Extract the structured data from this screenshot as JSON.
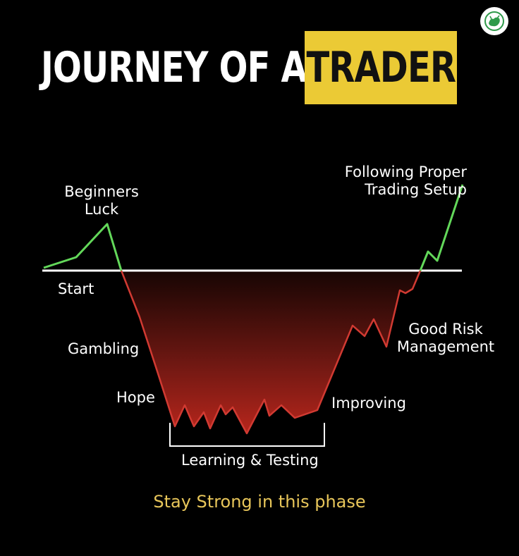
{
  "title": {
    "main": "JOURNEY OF A",
    "highlight": "TRADER"
  },
  "labels": {
    "beginners_luck": "Beginners\nLuck",
    "start": "Start",
    "gambling": "Gambling",
    "hope": "Hope",
    "learning_testing": "Learning & Testing",
    "improving": "Improving",
    "good_risk": "Good Risk\nManagement",
    "following": "Following Proper\nTrading Setup"
  },
  "footer": "Stay Strong in this phase",
  "colors": {
    "background": "#000000",
    "highlight": "#ebca35",
    "rise_line": "#63d85a",
    "fall_line": "#d13a32",
    "baseline": "#ffffff",
    "footer_text": "#e8c65a"
  },
  "icons": {
    "logo": "bull-bear-logo-icon"
  }
}
